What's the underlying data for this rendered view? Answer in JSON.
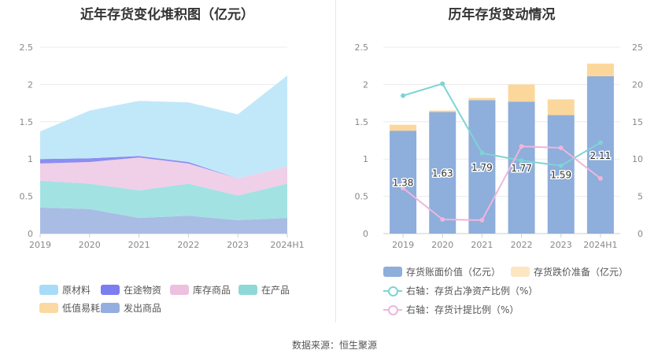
{
  "source": "数据来源：恒生聚源",
  "chart_data": [
    {
      "type": "area",
      "stacked": true,
      "title": "近年存货变化堆积图（亿元）",
      "categories": [
        "2019",
        "2020",
        "2021",
        "2022",
        "2023",
        "2024H1"
      ],
      "ylim": [
        0,
        2.5
      ],
      "yticks": [
        "0",
        "0.5",
        "1",
        "1.5",
        "2",
        "2.5"
      ],
      "grid": true,
      "legend_position": "bottom",
      "series": [
        {
          "name": "发出商品",
          "color": "#a9bce4",
          "values": [
            0.35,
            0.33,
            0.21,
            0.24,
            0.18,
            0.21
          ]
        },
        {
          "name": "在产品",
          "color": "#a3e2e2",
          "values": [
            0.36,
            0.34,
            0.37,
            0.43,
            0.33,
            0.46
          ]
        },
        {
          "name": "库存商品",
          "color": "#f0cfe8",
          "values": [
            0.23,
            0.29,
            0.44,
            0.27,
            0.23,
            0.23
          ]
        },
        {
          "name": "在途物资",
          "color": "#8a8ef0",
          "values": [
            0.06,
            0.05,
            0.02,
            0.02,
            0.0,
            0.0
          ]
        },
        {
          "name": "原材料",
          "color": "#c1e8f9",
          "values": [
            0.37,
            0.64,
            0.74,
            0.8,
            0.86,
            1.22
          ]
        },
        {
          "name": "低值易耗品",
          "color": "#fcd9a0",
          "values": [
            0,
            0,
            0,
            0,
            0,
            0
          ]
        }
      ],
      "legend": [
        {
          "name": "原材料",
          "color": "#a6dcf7"
        },
        {
          "name": "在途物资",
          "color": "#7b7df0"
        },
        {
          "name": "库存商品",
          "color": "#eec0e0"
        },
        {
          "name": "在产品",
          "color": "#8fd8d8"
        },
        {
          "name": "低值易耗品",
          "color": "#fcd9a0"
        },
        {
          "name": "发出商品",
          "color": "#94aee0"
        }
      ]
    },
    {
      "type": "bar",
      "title": "历年存货变动情况",
      "categories": [
        "2019",
        "2020",
        "2021",
        "2022",
        "2023",
        "2024H1"
      ],
      "ylim": [
        0,
        2.5
      ],
      "yticks": [
        "0",
        "0.5",
        "1",
        "1.5",
        "2",
        "2.5"
      ],
      "y2lim": [
        0,
        25
      ],
      "y2ticks": [
        "0",
        "5",
        "10",
        "15",
        "20",
        "25"
      ],
      "grid": true,
      "legend_position": "bottom",
      "series": [
        {
          "name": "存货账面价值（亿元）",
          "color": "#8eaedb",
          "axis": "left",
          "type": "bar",
          "values": [
            1.38,
            1.63,
            1.79,
            1.77,
            1.59,
            2.11
          ],
          "labels": [
            "1.38",
            "1.63",
            "1.79",
            "1.77",
            "1.59",
            "2.11"
          ]
        },
        {
          "name": "存货跌价准备（亿元）",
          "color": "#fcd79c",
          "axis": "left",
          "type": "bar-stack",
          "values": [
            0.08,
            0.02,
            0.03,
            0.23,
            0.21,
            0.17
          ]
        },
        {
          "name": "右轴：存货占净资产比例（%）",
          "color": "#7fd3d6",
          "axis": "right",
          "type": "line",
          "values": [
            18.5,
            20.1,
            10.8,
            9.8,
            9.1,
            12.2
          ]
        },
        {
          "name": "右轴：存货计提比例（%）",
          "color": "#eeb6db",
          "axis": "right",
          "type": "line",
          "values": [
            6.1,
            1.9,
            1.8,
            11.7,
            11.5,
            7.4
          ]
        }
      ],
      "legend_swatch": [
        {
          "name": "存货账面价值（亿元）",
          "color": "#8eaedb"
        },
        {
          "name": "存货跌价准备（亿元）",
          "color": "#fde6c2"
        }
      ]
    }
  ]
}
